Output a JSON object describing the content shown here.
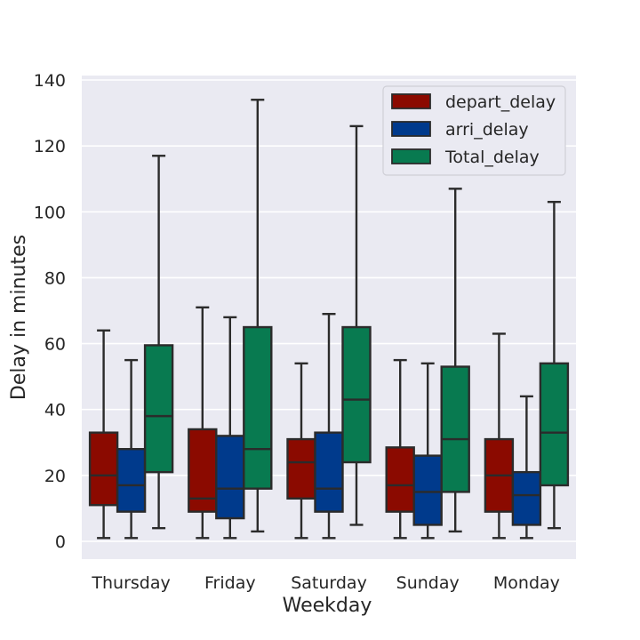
{
  "chart_data": {
    "type": "boxplot",
    "xlabel": "Weekday",
    "ylabel": "Delay in minutes",
    "ylim": [
      -5,
      142
    ],
    "yticks": [
      0,
      20,
      40,
      60,
      80,
      100,
      120,
      140
    ],
    "grid": true,
    "legend_position": "top-right",
    "categories": [
      "Thursday",
      "Friday",
      "Saturday",
      "Sunday",
      "Monday"
    ],
    "series": [
      {
        "name": "depart_delay",
        "color": "#8b0a00",
        "boxes": [
          {
            "min": 1,
            "q1": 11,
            "median": 20,
            "q3": 33,
            "max": 64
          },
          {
            "min": 1,
            "q1": 9,
            "median": 13,
            "q3": 34,
            "max": 71
          },
          {
            "min": 1,
            "q1": 13,
            "median": 24,
            "q3": 31,
            "max": 54
          },
          {
            "min": 1,
            "q1": 9,
            "median": 17,
            "q3": 28.5,
            "max": 55
          },
          {
            "min": 1,
            "q1": 9,
            "median": 20,
            "q3": 31,
            "max": 63
          }
        ]
      },
      {
        "name": "arri_delay",
        "color": "#003a8c",
        "boxes": [
          {
            "min": 1,
            "q1": 9,
            "median": 17,
            "q3": 28,
            "max": 55
          },
          {
            "min": 1,
            "q1": 7,
            "median": 16,
            "q3": 32,
            "max": 68
          },
          {
            "min": 1,
            "q1": 9,
            "median": 16,
            "q3": 33,
            "max": 69
          },
          {
            "min": 1,
            "q1": 5,
            "median": 15,
            "q3": 26,
            "max": 54
          },
          {
            "min": 1,
            "q1": 5,
            "median": 14,
            "q3": 21,
            "max": 44
          }
        ]
      },
      {
        "name": "Total_delay",
        "color": "#087a50",
        "boxes": [
          {
            "min": 4,
            "q1": 21,
            "median": 38,
            "q3": 59.5,
            "max": 117
          },
          {
            "min": 3,
            "q1": 16,
            "median": 28,
            "q3": 65,
            "max": 134
          },
          {
            "min": 5,
            "q1": 24,
            "median": 43,
            "q3": 65,
            "max": 126
          },
          {
            "min": 3,
            "q1": 15,
            "median": 31,
            "q3": 53,
            "max": 107
          },
          {
            "min": 4,
            "q1": 17,
            "median": 33,
            "q3": 54,
            "max": 103
          }
        ]
      }
    ]
  }
}
